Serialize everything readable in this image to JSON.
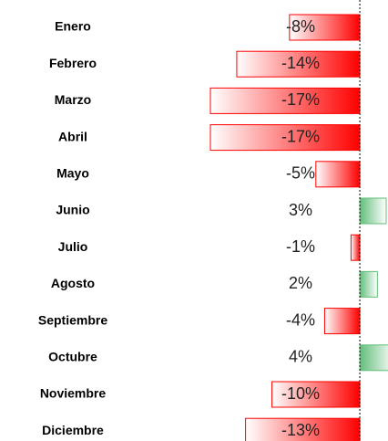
{
  "chart_data": {
    "type": "bar",
    "orientation": "horizontal",
    "categories": [
      "Enero",
      "Febrero",
      "Marzo",
      "Abril",
      "Mayo",
      "Junio",
      "Julio",
      "Agosto",
      "Septiembre",
      "Octubre",
      "Noviembre",
      "Diciembre"
    ],
    "values": [
      -8,
      -14,
      -17,
      -17,
      -5,
      3,
      -1,
      2,
      -4,
      4,
      -10,
      -13
    ],
    "value_labels": [
      "-8%",
      "-14%",
      "-17%",
      "-17%",
      "-5%",
      "3%",
      "-1%",
      "2%",
      "-4%",
      "4%",
      "-10%",
      "-13%"
    ],
    "negative_color": "#ff0000",
    "positive_color": "#63be7b",
    "xlim": [
      -17,
      3
    ]
  }
}
